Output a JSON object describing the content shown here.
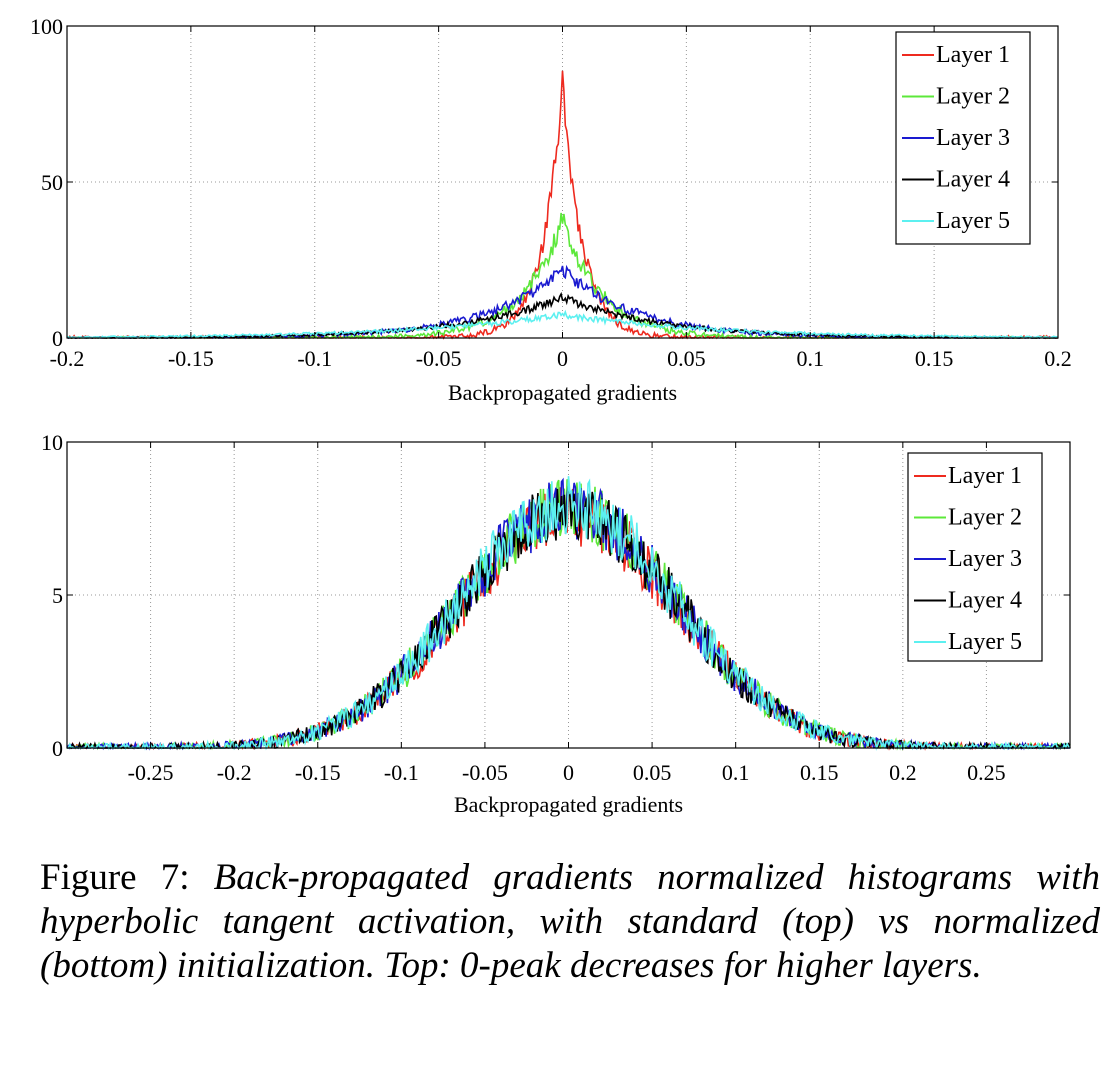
{
  "charts": [
    {
      "type": "line",
      "panel": "top",
      "title": "",
      "xlabel": "Backpropagated gradients",
      "ylabel": "",
      "xlim": [
        -0.2,
        0.2
      ],
      "ylim": [
        0,
        100
      ],
      "xticks": [
        -0.2,
        -0.15,
        -0.1,
        -0.05,
        0,
        0.05,
        0.1,
        0.15,
        0.2
      ],
      "xtick_labels": [
        "-0.2",
        "-0.15",
        "-0.1",
        "-0.05",
        "0",
        "0.05",
        "0.1",
        "0.15",
        "0.2"
      ],
      "yticks": [
        0,
        50,
        100
      ],
      "ytick_labels": [
        "0",
        "50",
        "100"
      ],
      "grid": true,
      "legend_position": "top-right",
      "series": [
        {
          "name": "Layer 1",
          "color": "#ee2a1f",
          "peak": 82,
          "width": 0.008,
          "shape": "laplace",
          "noise": 5
        },
        {
          "name": "Layer 2",
          "color": "#5ce83a",
          "peak": 38,
          "width": 0.016,
          "shape": "laplace",
          "noise": 3.5
        },
        {
          "name": "Layer 3",
          "color": "#1a1ad0",
          "peak": 22,
          "width": 0.03,
          "shape": "laplace",
          "noise": 2.2
        },
        {
          "name": "Layer 4",
          "color": "#000000",
          "peak": 13,
          "width": 0.04,
          "shape": "laplace",
          "noise": 1.4
        },
        {
          "name": "Layer 5",
          "color": "#5cf0f0",
          "peak": 7.5,
          "width": 0.06,
          "shape": "laplace",
          "noise": 1.0
        }
      ]
    },
    {
      "type": "line",
      "panel": "bottom",
      "title": "",
      "xlabel": "Backpropagated gradients",
      "ylabel": "",
      "xlim": [
        -0.3,
        0.3
      ],
      "ylim": [
        0,
        10
      ],
      "xticks": [
        -0.25,
        -0.2,
        -0.15,
        -0.1,
        -0.05,
        0,
        0.05,
        0.1,
        0.15,
        0.2,
        0.25
      ],
      "xtick_labels": [
        "-0.25",
        "-0.2",
        "-0.15",
        "-0.1",
        "-0.05",
        "0",
        "0.05",
        "0.1",
        "0.15",
        "0.2",
        "0.25"
      ],
      "yticks": [
        0,
        5,
        10
      ],
      "ytick_labels": [
        "0",
        "5",
        "10"
      ],
      "grid": true,
      "legend_position": "top-right",
      "series": [
        {
          "name": "Layer 1",
          "color": "#ee2a1f",
          "peak": 7.6,
          "width": 0.065,
          "shape": "gauss",
          "noise": 1.0
        },
        {
          "name": "Layer 2",
          "color": "#5ce83a",
          "peak": 7.8,
          "width": 0.065,
          "shape": "gauss",
          "noise": 1.0
        },
        {
          "name": "Layer 3",
          "color": "#1a1ad0",
          "peak": 7.8,
          "width": 0.065,
          "shape": "gauss",
          "noise": 1.0
        },
        {
          "name": "Layer 4",
          "color": "#000000",
          "peak": 7.8,
          "width": 0.065,
          "shape": "gauss",
          "noise": 1.0
        },
        {
          "name": "Layer 5",
          "color": "#5cf0f0",
          "peak": 7.9,
          "width": 0.065,
          "shape": "gauss",
          "noise": 1.0
        }
      ]
    }
  ],
  "caption": {
    "label": "Figure 7:",
    "text": "Back-propagated gradients normalized histograms with hyperbolic tangent activation, with standard (top) vs normalized (bottom) initialization. Top: 0-peak decreases for higher layers."
  }
}
